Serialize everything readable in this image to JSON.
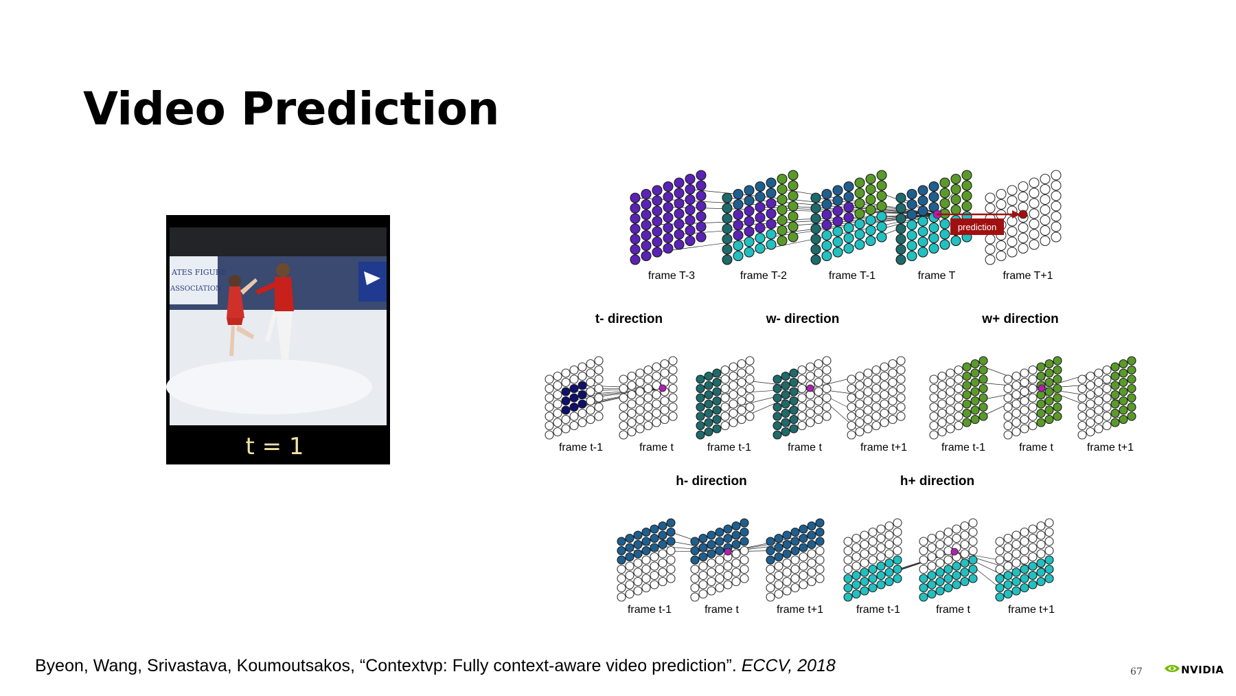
{
  "slide": {
    "title": "Video Prediction",
    "page_number": "67",
    "brand": "NVIDIA"
  },
  "video": {
    "caption": "t = 1",
    "banner_lines": [
      "ATES FIGURE",
      "ASSOCIATION"
    ]
  },
  "citation": {
    "text": "Byeon, Wang, Srivastava, Koumoutsakos, “Contextvp: Fully context-aware video prediction”. ",
    "venue": "ECCV, 2018"
  },
  "diagram": {
    "top": {
      "frame_labels": [
        "frame T-3",
        "frame T-2",
        "frame T-1",
        "frame T",
        "frame T+1"
      ],
      "prediction_label": "prediction"
    },
    "directions": {
      "t_minus": {
        "title": "t- direction",
        "frames": [
          "frame t-1",
          "frame t"
        ]
      },
      "w_minus": {
        "title": "w- direction",
        "frames": [
          "frame t-1",
          "frame t",
          "frame t+1"
        ]
      },
      "w_plus": {
        "title": "w+ direction",
        "frames": [
          "frame t-1",
          "frame t",
          "frame t+1"
        ]
      },
      "h_minus": {
        "title": "h- direction",
        "frames": [
          "frame t-1",
          "frame t",
          "frame t+1"
        ]
      },
      "h_plus": {
        "title": "h+ direction",
        "frames": [
          "frame t-1",
          "frame t",
          "frame t+1"
        ]
      }
    },
    "colors": {
      "purple": "#5a23b5",
      "blue": "#1f5f8f",
      "green": "#5a9a2a",
      "teal": "#1f6a6a",
      "cyan": "#22c0c0",
      "navy": "#10106e",
      "magenta": "#b020b0",
      "prediction": "#a01010"
    }
  }
}
